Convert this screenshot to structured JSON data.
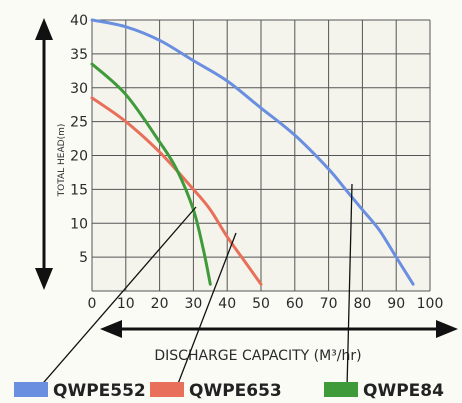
{
  "chart_data": {
    "type": "line",
    "xlabel": "DISCHARGE CAPACITY (M³/hr)",
    "ylabel": "TOTAL HEAD(m)",
    "xlim": [
      0,
      100
    ],
    "ylim": [
      0,
      40
    ],
    "x_ticks": [
      "0",
      "10",
      "20",
      "30",
      "40",
      "50",
      "60",
      "70",
      "80",
      "90",
      "100"
    ],
    "y_ticks": [
      "5",
      "10",
      "15",
      "20",
      "25",
      "30",
      "35",
      "40"
    ],
    "grid": true,
    "legend_position": "bottom",
    "series": [
      {
        "name": "QWPE552",
        "color": "#6b8fe0",
        "x": [
          0,
          10,
          20,
          30,
          40,
          50,
          60,
          70,
          75,
          80,
          85,
          90,
          95
        ],
        "y": [
          40,
          39,
          37,
          34,
          31,
          27,
          23,
          18,
          15,
          12,
          9,
          5,
          1
        ]
      },
      {
        "name": "QWPE653",
        "color": "#e8705a",
        "x": [
          0,
          10,
          20,
          30,
          35,
          40,
          45,
          50
        ],
        "y": [
          28.5,
          25,
          20.5,
          15,
          12,
          8,
          4.5,
          1
        ]
      },
      {
        "name": "QWPE84",
        "color": "#3f9a3a",
        "x": [
          0,
          10,
          20,
          25,
          30,
          33,
          35
        ],
        "y": [
          33.5,
          29,
          22,
          18,
          12,
          6,
          1
        ]
      }
    ]
  }
}
